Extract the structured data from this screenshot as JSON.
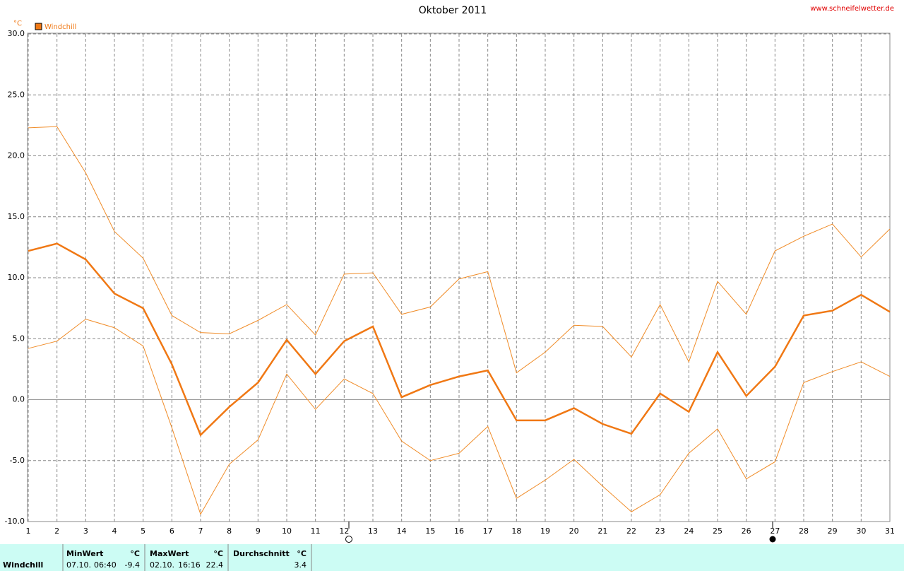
{
  "chart_data": {
    "type": "line",
    "title": "Oktober 2011",
    "source": "www.schneifelwetter.de",
    "y_unit": "°C",
    "x": [
      1,
      2,
      3,
      4,
      5,
      6,
      7,
      8,
      9,
      10,
      11,
      12,
      13,
      14,
      15,
      16,
      17,
      18,
      19,
      20,
      21,
      22,
      23,
      24,
      25,
      26,
      27,
      28,
      29,
      30,
      31
    ],
    "xlim": [
      1,
      31
    ],
    "xticks": [
      1,
      2,
      3,
      4,
      5,
      6,
      7,
      8,
      9,
      10,
      11,
      12,
      13,
      14,
      15,
      16,
      17,
      18,
      19,
      20,
      21,
      22,
      23,
      24,
      25,
      26,
      27,
      28,
      29,
      30,
      31
    ],
    "ylim": [
      -10,
      30
    ],
    "yticks": [
      {
        "value": -10,
        "label": "-10.0"
      },
      {
        "value": -5,
        "label": "-5.0"
      },
      {
        "value": 0,
        "label": "0.0"
      },
      {
        "value": 5,
        "label": "5.0"
      },
      {
        "value": 10,
        "label": "10.0"
      },
      {
        "value": 15,
        "label": "15.0"
      },
      {
        "value": 20,
        "label": "20.0"
      },
      {
        "value": 25,
        "label": "25.0"
      },
      {
        "value": 30,
        "label": "30.0"
      }
    ],
    "grid": true,
    "series": [
      {
        "name": "Windchill",
        "color": "#f07814",
        "values": [
          12.2,
          12.8,
          11.5,
          8.7,
          7.5,
          2.9,
          -2.9,
          -0.6,
          1.4,
          4.9,
          2.1,
          4.8,
          6.0,
          0.2,
          1.2,
          1.9,
          2.4,
          -1.7,
          -1.7,
          -0.7,
          -2.0,
          -2.8,
          0.5,
          -1.0,
          3.9,
          0.3,
          2.7,
          6.9,
          7.3,
          8.6,
          7.2
        ]
      },
      {
        "color": "#f08c28",
        "values": [
          22.3,
          22.4,
          18.6,
          13.8,
          11.6,
          6.9,
          5.5,
          5.4,
          6.5,
          7.8,
          5.3,
          10.3,
          10.4,
          7.0,
          7.6,
          9.9,
          10.5,
          2.2,
          3.9,
          6.1,
          6.0,
          3.5,
          7.8,
          3.1,
          9.7,
          7.0,
          12.2,
          13.4,
          14.4,
          11.7,
          14.0
        ]
      },
      {
        "color": "#f08c28",
        "values": [
          4.2,
          4.8,
          6.6,
          5.9,
          4.4,
          -2.3,
          -9.4,
          -5.3,
          -3.3,
          2.1,
          -0.8,
          1.7,
          0.5,
          -3.4,
          -5.0,
          -4.4,
          -2.2,
          -8.1,
          -6.6,
          -4.9,
          -7.1,
          -9.2,
          -7.8,
          -4.4,
          -2.4,
          -6.5,
          -5.1,
          1.4,
          2.3,
          3.1,
          1.9
        ]
      }
    ]
  },
  "summary": {
    "label": "Windchill",
    "min": {
      "header": "MinWert",
      "unit": "°C",
      "date": "07.10.",
      "time": "06:40",
      "value": "-9.4"
    },
    "max": {
      "header": "MaxWert",
      "unit": "°C",
      "date": "02.10.",
      "time": "16:16",
      "value": "22.4"
    },
    "avg": {
      "header": "Durchschnitt",
      "unit": "°C",
      "value": "3.4"
    }
  }
}
